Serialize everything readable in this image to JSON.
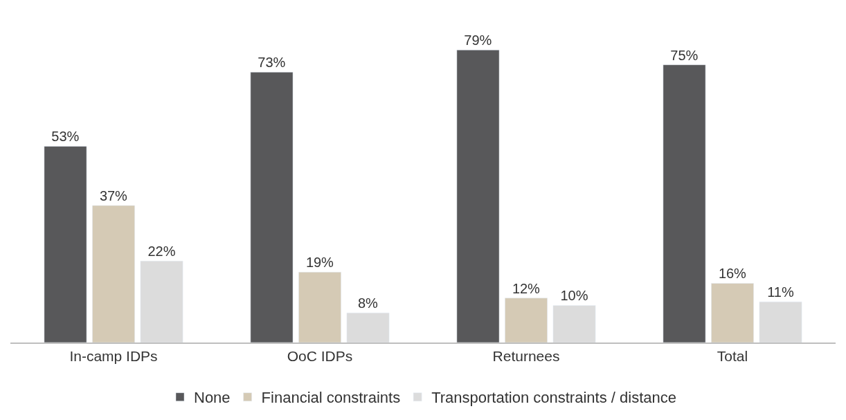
{
  "chart_data": {
    "type": "bar",
    "categories": [
      "In-camp IDPs",
      "OoC IDPs",
      "Returnees",
      "Total"
    ],
    "series": [
      {
        "name": "None",
        "color": "#58585a",
        "values": [
          53,
          73,
          79,
          75
        ],
        "value_labels": [
          "53%",
          "73%",
          "79%",
          "75%"
        ]
      },
      {
        "name": "Financial constraints",
        "color": "#d5cab5",
        "values": [
          37,
          19,
          12,
          16
        ],
        "value_labels": [
          "37%",
          "19%",
          "12%",
          "16%"
        ]
      },
      {
        "name": "Transportation constraints / distance",
        "color": "#dcdcdc",
        "values": [
          22,
          8,
          10,
          11
        ],
        "value_labels": [
          "22%",
          "8%",
          "10%",
          "11%"
        ]
      }
    ],
    "tick_labels": "x",
    "legend": "bottom"
  }
}
